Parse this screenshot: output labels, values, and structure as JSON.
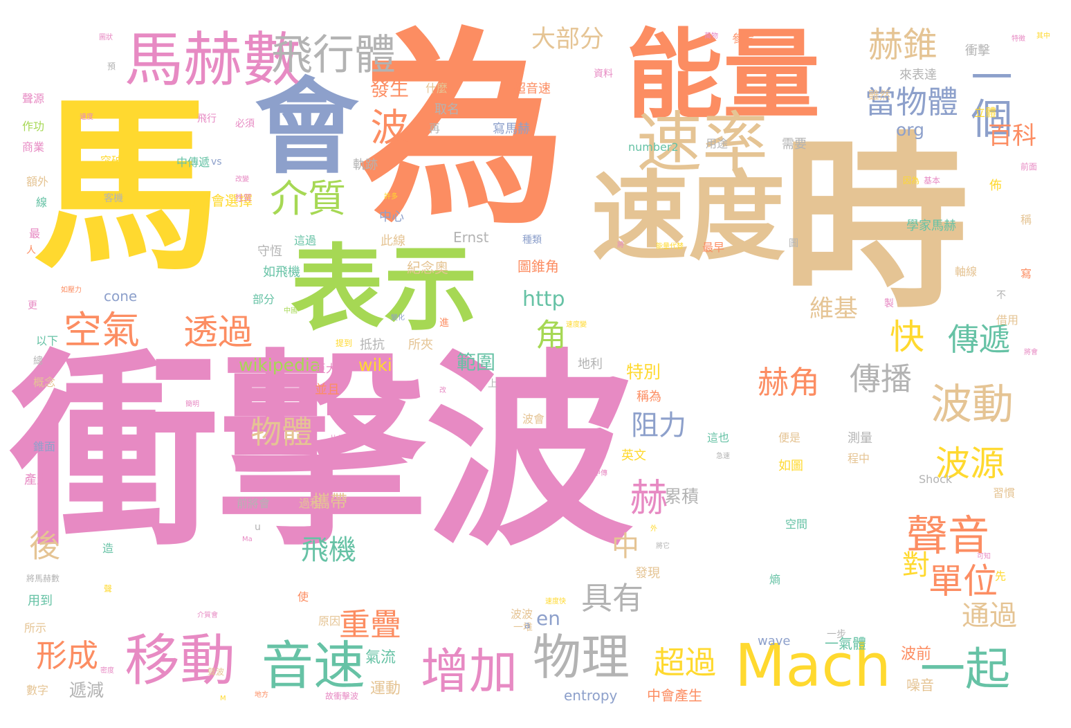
{
  "palette": {
    "pink": "#e78ac3",
    "orange": "#fc8d62",
    "yellow": "#ffd92f",
    "tan": "#e5c494",
    "green": "#a6d854",
    "teal": "#66c2a5",
    "blue": "#8da0cb",
    "gray": "#b3b3b3"
  },
  "words": [
    {
      "text": "衝擊波",
      "color": "pink",
      "size": 300
    },
    {
      "text": "為",
      "color": "orange",
      "size": 300
    },
    {
      "text": "馬",
      "color": "yellow",
      "size": 270
    },
    {
      "text": "時",
      "color": "tan",
      "size": 270
    },
    {
      "text": "能量",
      "color": "orange",
      "size": 140
    },
    {
      "text": "會",
      "color": "blue",
      "size": 150
    },
    {
      "text": "表示",
      "color": "green",
      "size": 135
    },
    {
      "text": "速度",
      "color": "tan",
      "size": 140
    },
    {
      "text": "速率",
      "color": "tan",
      "size": 95
    },
    {
      "text": "馬赫數",
      "color": "pink",
      "size": 85
    },
    {
      "text": "飛行體",
      "color": "gray",
      "size": 60
    },
    {
      "text": "Mach",
      "color": "yellow",
      "size": 85
    },
    {
      "text": "移動",
      "color": "pink",
      "size": 80
    },
    {
      "text": "音速",
      "color": "teal",
      "size": 75
    },
    {
      "text": "物理",
      "color": "gray",
      "size": 70
    },
    {
      "text": "增加",
      "color": "pink",
      "size": 70
    },
    {
      "text": "一起",
      "color": "teal",
      "size": 65
    },
    {
      "text": "一個",
      "color": "blue",
      "size": 60
    },
    {
      "text": "波動",
      "color": "tan",
      "size": 60
    },
    {
      "text": "聲音",
      "color": "orange",
      "size": 60
    },
    {
      "text": "介質",
      "color": "green",
      "size": 55
    },
    {
      "text": "空氣",
      "color": "orange",
      "size": 55
    },
    {
      "text": "透過",
      "color": "orange",
      "size": 50
    },
    {
      "text": "赫錐",
      "color": "tan",
      "size": 50
    },
    {
      "text": "當物體",
      "color": "blue",
      "size": 45
    },
    {
      "text": "波源",
      "color": "yellow",
      "size": 50
    },
    {
      "text": "單位",
      "color": "orange",
      "size": 50
    },
    {
      "text": "傳遞",
      "color": "teal",
      "size": 45
    },
    {
      "text": "傳播",
      "color": "gray",
      "size": 45
    },
    {
      "text": "赫角",
      "color": "orange",
      "size": 45
    },
    {
      "text": "波",
      "color": "orange",
      "size": 55
    },
    {
      "text": "赫",
      "color": "pink",
      "size": 55
    },
    {
      "text": "快",
      "color": "yellow",
      "size": 50
    },
    {
      "text": "角",
      "color": "green",
      "size": 45
    },
    {
      "text": "物體",
      "color": "tan",
      "size": 45
    },
    {
      "text": "阻力",
      "color": "blue",
      "size": 40
    },
    {
      "text": "具有",
      "color": "gray",
      "size": 45
    },
    {
      "text": "重疊",
      "color": "orange",
      "size": 45
    },
    {
      "text": "形成",
      "color": "orange",
      "size": 45
    },
    {
      "text": "超過",
      "color": "yellow",
      "size": 45
    },
    {
      "text": "通過",
      "color": "tan",
      "size": 40
    },
    {
      "text": "飛機",
      "color": "teal",
      "size": 40
    },
    {
      "text": "後",
      "color": "tan",
      "size": 45
    },
    {
      "text": "中",
      "color": "tan",
      "size": 40
    },
    {
      "text": "對",
      "color": "yellow",
      "size": 40
    },
    {
      "text": "維基",
      "color": "tan",
      "size": 35
    },
    {
      "text": "百科",
      "color": "orange",
      "size": 35
    },
    {
      "text": "大部分",
      "color": "tan",
      "size": 35
    },
    {
      "text": "發生",
      "color": "orange",
      "size": 28
    },
    {
      "text": "http",
      "color": "teal",
      "size": 30
    },
    {
      "text": "wikipedia",
      "color": "green",
      "size": 25
    },
    {
      "text": "wiki",
      "color": "yellow",
      "size": 25
    },
    {
      "text": "en",
      "color": "blue",
      "size": 28
    },
    {
      "text": "org",
      "color": "blue",
      "size": 25
    },
    {
      "text": "範圍",
      "color": "teal",
      "size": 28
    },
    {
      "text": "特別",
      "color": "yellow",
      "size": 25
    },
    {
      "text": "累積",
      "color": "gray",
      "size": 25
    },
    {
      "text": "攜帶",
      "color": "tan",
      "size": 25
    },
    {
      "text": "遞減",
      "color": "gray",
      "size": 25
    },
    {
      "text": "氣流",
      "color": "teal",
      "size": 22
    },
    {
      "text": "運動",
      "color": "tan",
      "size": 22
    },
    {
      "text": "中會產生",
      "color": "orange",
      "size": 20
    },
    {
      "text": "entropy",
      "color": "blue",
      "size": 20
    },
    {
      "text": "wave",
      "color": "blue",
      "size": 18
    },
    {
      "text": "一氣體",
      "color": "teal",
      "size": 20
    },
    {
      "text": "波前",
      "color": "orange",
      "size": 22
    },
    {
      "text": "噪音",
      "color": "tan",
      "size": 20
    },
    {
      "text": "Ernst",
      "color": "gray",
      "size": 20
    },
    {
      "text": "cone",
      "color": "blue",
      "size": 20
    },
    {
      "text": "number2",
      "color": "teal",
      "size": 16
    },
    {
      "text": "Shock",
      "color": "gray",
      "size": 16
    },
    {
      "text": "學家馬赫",
      "color": "teal",
      "size": 18
    },
    {
      "text": "圖錐角",
      "color": "orange",
      "size": 20
    },
    {
      "text": "紀念奧",
      "color": "tan",
      "size": 20
    },
    {
      "text": "如下會選擇",
      "color": "yellow",
      "size": 20
    },
    {
      "text": "如飛機",
      "color": "teal",
      "size": 18
    },
    {
      "text": "守恆",
      "color": "gray",
      "size": 18
    },
    {
      "text": "軌跡",
      "color": "gray",
      "size": 18
    },
    {
      "text": "寫馬赫",
      "color": "blue",
      "size": 18
    },
    {
      "text": "超音速",
      "color": "orange",
      "size": 18
    },
    {
      "text": "用途",
      "color": "gray",
      "size": 16
    },
    {
      "text": "需要",
      "color": "gray",
      "size": 18
    },
    {
      "text": "最早",
      "color": "orange",
      "size": 16
    },
    {
      "text": "衝擊",
      "color": "gray",
      "size": 18
    },
    {
      "text": "來表達",
      "color": "gray",
      "size": 18
    },
    {
      "text": "雖然",
      "color": "tan",
      "size": 16
    },
    {
      "text": "立體",
      "color": "yellow",
      "size": 16
    },
    {
      "text": "參考",
      "color": "orange",
      "size": 16
    },
    {
      "text": "資料",
      "color": "pink",
      "size": 14
    },
    {
      "text": "什麼",
      "color": "tan",
      "size": 16
    },
    {
      "text": "取名",
      "color": "gray",
      "size": 18
    },
    {
      "text": "再",
      "color": "gray",
      "size": 16
    },
    {
      "text": "vs",
      "color": "blue",
      "size": 14
    },
    {
      "text": "中傳遞",
      "color": "teal",
      "size": 16
    },
    {
      "text": "種類",
      "color": "blue",
      "size": 14
    },
    {
      "text": "此線",
      "color": "tan",
      "size": 18
    },
    {
      "text": "中心",
      "color": "blue",
      "size": 18
    },
    {
      "text": "所夾",
      "color": "tan",
      "size": 18
    },
    {
      "text": "抵抗",
      "color": "gray",
      "size": 18
    },
    {
      "text": "地利",
      "color": "gray",
      "size": 18
    },
    {
      "text": "巨大",
      "color": "pink",
      "size": 16
    },
    {
      "text": "並且",
      "color": "orange",
      "size": 18
    },
    {
      "text": "稱為",
      "color": "orange",
      "size": 18
    },
    {
      "text": "波會",
      "color": "tan",
      "size": 16
    },
    {
      "text": "這也",
      "color": "teal",
      "size": 16
    },
    {
      "text": "英文",
      "color": "yellow",
      "size": 18
    },
    {
      "text": "便是",
      "color": "tan",
      "size": 16
    },
    {
      "text": "如圖",
      "color": "yellow",
      "size": 18
    },
    {
      "text": "測量",
      "color": "gray",
      "size": 18
    },
    {
      "text": "程中",
      "color": "tan",
      "size": 16
    },
    {
      "text": "習慣",
      "color": "tan",
      "size": 16
    },
    {
      "text": "空間",
      "color": "teal",
      "size": 16
    },
    {
      "text": "熵",
      "color": "teal",
      "size": 16
    },
    {
      "text": "發現",
      "color": "tan",
      "size": 18
    },
    {
      "text": "過程",
      "color": "tan",
      "size": 16
    },
    {
      "text": "前將會",
      "color": "gray",
      "size": 16
    },
    {
      "text": "原因",
      "color": "tan",
      "size": 16
    },
    {
      "text": "使",
      "color": "orange",
      "size": 16
    },
    {
      "text": "波波",
      "color": "tan",
      "size": 16
    },
    {
      "text": "一堆",
      "color": "tan",
      "size": 14
    },
    {
      "text": "一步",
      "color": "gray",
      "size": 14
    },
    {
      "text": "部分",
      "color": "teal",
      "size": 16
    },
    {
      "text": "這過",
      "color": "teal",
      "size": 16
    },
    {
      "text": "聲源",
      "color": "pink",
      "size": 16
    },
    {
      "text": "作功",
      "color": "green",
      "size": 16
    },
    {
      "text": "商業",
      "color": "pink",
      "size": 16
    },
    {
      "text": "額外",
      "color": "tan",
      "size": 16
    },
    {
      "text": "線",
      "color": "teal",
      "size": 16
    },
    {
      "text": "最",
      "color": "pink",
      "size": 16
    },
    {
      "text": "人",
      "color": "orange",
      "size": 14
    },
    {
      "text": "更",
      "color": "pink",
      "size": 14
    },
    {
      "text": "以下",
      "color": "teal",
      "size": 16
    },
    {
      "text": "總",
      "color": "gray",
      "size": 14
    },
    {
      "text": "概念",
      "color": "tan",
      "size": 16
    },
    {
      "text": "錐面",
      "color": "blue",
      "size": 16
    },
    {
      "text": "產生",
      "color": "pink",
      "size": 18
    },
    {
      "text": "用到",
      "color": "teal",
      "size": 18
    },
    {
      "text": "所示",
      "color": "tan",
      "size": 16
    },
    {
      "text": "數字",
      "color": "tan",
      "size": 16
    },
    {
      "text": "突破",
      "color": "yellow",
      "size": 16
    },
    {
      "text": "客機",
      "color": "gray",
      "size": 14
    },
    {
      "text": "飛行",
      "color": "pink",
      "size": 14
    },
    {
      "text": "必須",
      "color": "pink",
      "size": 14
    },
    {
      "text": "前面",
      "color": "pink",
      "size": 12
    },
    {
      "text": "佈",
      "color": "yellow",
      "size": 18
    },
    {
      "text": "稱",
      "color": "tan",
      "size": 16
    },
    {
      "text": "寫",
      "color": "orange",
      "size": 16
    },
    {
      "text": "不",
      "color": "gray",
      "size": 14
    },
    {
      "text": "借用",
      "color": "tan",
      "size": 16
    },
    {
      "text": "軸線",
      "color": "tan",
      "size": 16
    },
    {
      "text": "先",
      "color": "yellow",
      "size": 16
    },
    {
      "text": "因為",
      "color": "yellow",
      "size": 12
    },
    {
      "text": "基本",
      "color": "pink",
      "size": 12
    },
    {
      "text": "上",
      "color": "gray",
      "size": 14
    },
    {
      "text": "u",
      "color": "gray",
      "size": 14
    },
    {
      "text": "a",
      "color": "blue",
      "size": 14
    },
    {
      "text": "M",
      "color": "yellow",
      "size": 10
    },
    {
      "text": "Ma",
      "color": "pink",
      "size": 10
    },
    {
      "text": "造",
      "color": "teal",
      "size": 16
    },
    {
      "text": "進",
      "color": "orange",
      "size": 14
    },
    {
      "text": "製",
      "color": "pink",
      "size": 14
    },
    {
      "text": "外",
      "color": "yellow",
      "size": 10
    },
    {
      "text": "圖",
      "color": "gray",
      "size": 14
    },
    {
      "text": "聲",
      "color": "yellow",
      "size": 12
    },
    {
      "text": "將馬赫數",
      "color": "gray",
      "size": 12
    },
    {
      "text": "故衝擊波",
      "color": "pink",
      "size": 12
    },
    {
      "text": "如壓力",
      "color": "orange",
      "size": 10
    },
    {
      "text": "性質",
      "color": "pink",
      "size": 12
    },
    {
      "text": "許多",
      "color": "yellow",
      "size": 10
    },
    {
      "text": "改變",
      "color": "pink",
      "size": 10
    },
    {
      "text": "變化",
      "color": "blue",
      "size": 10
    },
    {
      "text": "提到",
      "color": "yellow",
      "size": 12
    },
    {
      "text": "中傳",
      "color": "pink",
      "size": 10
    },
    {
      "text": "介質會",
      "color": "pink",
      "size": 10
    },
    {
      "text": "聲波",
      "color": "tan",
      "size": 12
    },
    {
      "text": "速度",
      "color": "pink",
      "size": 10
    },
    {
      "text": "地方",
      "color": "orange",
      "size": 10
    },
    {
      "text": "速度快",
      "color": "yellow",
      "size": 10
    },
    {
      "text": "密度",
      "color": "pink",
      "size": 10
    },
    {
      "text": "將它",
      "color": "gray",
      "size": 10
    },
    {
      "text": "可知",
      "color": "pink",
      "size": 10
    },
    {
      "text": "圖狀",
      "color": "pink",
      "size": 10
    },
    {
      "text": "預",
      "color": "gray",
      "size": 12
    },
    {
      "text": "特徵",
      "color": "pink",
      "size": 10
    },
    {
      "text": "將會",
      "color": "pink",
      "size": 10
    },
    {
      "text": "中國",
      "color": "green",
      "size": 10
    },
    {
      "text": "萬物",
      "color": "pink",
      "size": 10
    },
    {
      "text": "比值",
      "color": "pink",
      "size": 10
    },
    {
      "text": "簡明",
      "color": "pink",
      "size": 10
    },
    {
      "text": "急速",
      "color": "gray",
      "size": 10
    },
    {
      "text": "改",
      "color": "pink",
      "size": 10
    },
    {
      "text": "速度變",
      "color": "yellow",
      "size": 10
    },
    {
      "text": "能量代替",
      "color": "yellow",
      "size": 10
    },
    {
      "text": "將",
      "color": "pink",
      "size": 10
    },
    {
      "text": "其中",
      "color": "yellow",
      "size": 10
    }
  ]
}
